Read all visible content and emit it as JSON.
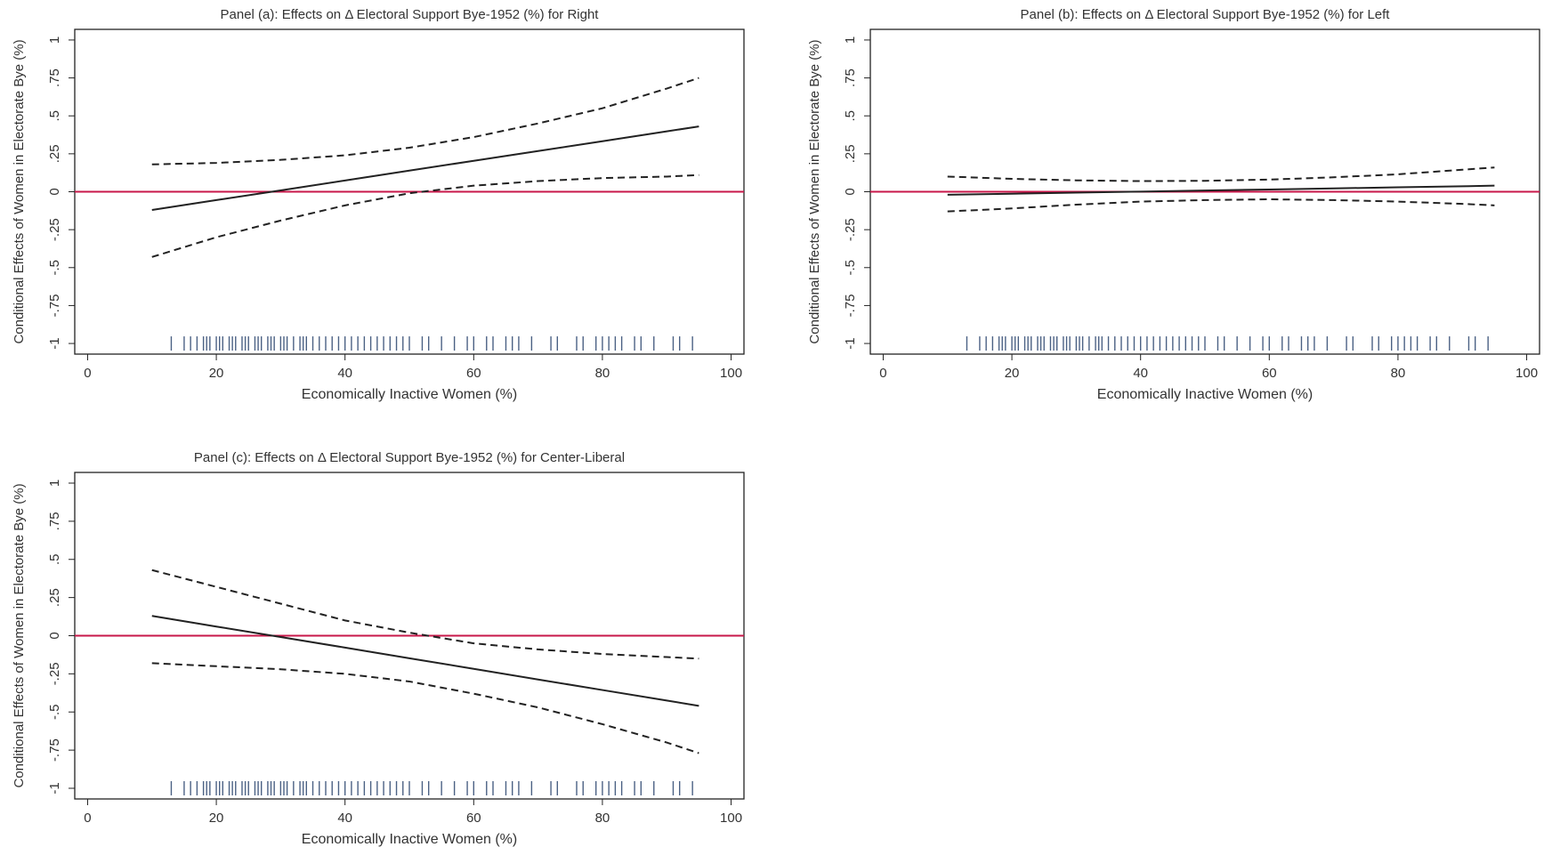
{
  "chart_data": [
    {
      "type": "line",
      "title": "Panel (a): Effects on Δ Electoral Support Bye-1952 (%) for Right",
      "xlabel": "Economically Inactive Women (%)",
      "ylabel": "Conditional Effects of Women in Electorate Bye (%)",
      "x": [
        10,
        20,
        30,
        40,
        50,
        60,
        70,
        80,
        90,
        95
      ],
      "series": [
        {
          "color": "#222222",
          "style": "solid",
          "values": [
            -0.12,
            -0.055,
            0.009,
            0.074,
            0.139,
            0.204,
            0.268,
            0.333,
            0.398,
            0.43
          ]
        },
        {
          "color": "#222222",
          "style": "dashed",
          "values": [
            0.18,
            0.19,
            0.21,
            0.24,
            0.29,
            0.36,
            0.45,
            0.55,
            0.68,
            0.75
          ]
        },
        {
          "color": "#222222",
          "style": "dashed",
          "values": [
            -0.43,
            -0.3,
            -0.19,
            -0.09,
            -0.01,
            0.04,
            0.07,
            0.09,
            0.1,
            0.11
          ]
        }
      ],
      "hline": 0,
      "hline_color": "#c8174a",
      "rug_color": "#1f3a66",
      "rug": [
        13,
        15,
        16,
        17,
        18,
        18.5,
        19,
        20,
        20.5,
        21,
        22,
        22.5,
        23,
        24,
        24.5,
        25,
        26,
        26.5,
        27,
        28,
        28.5,
        29,
        30,
        30.5,
        31,
        32,
        33,
        33.5,
        34,
        35,
        36,
        37,
        38,
        39,
        40,
        41,
        42,
        43,
        44,
        45,
        46,
        47,
        48,
        49,
        50,
        52,
        53,
        55,
        57,
        59,
        60,
        62,
        63,
        65,
        66,
        67,
        69,
        72,
        73,
        76,
        77,
        79,
        80,
        81,
        82,
        83,
        85,
        86,
        88,
        91,
        92,
        94
      ],
      "xlim": [
        -2,
        102
      ],
      "ylim": [
        -1.07,
        1.07
      ],
      "xticks": [
        0,
        20,
        40,
        60,
        80,
        100
      ],
      "yticks": [
        -1,
        {
          "value": -0.75,
          "label": "-.75"
        },
        {
          "value": -0.5,
          "label": "-.5"
        },
        {
          "value": -0.25,
          "label": "-.25"
        },
        0,
        {
          "value": 0.25,
          "label": ".25"
        },
        {
          "value": 0.5,
          "label": ".5"
        },
        {
          "value": 0.75,
          "label": ".75"
        },
        1
      ]
    },
    {
      "type": "line",
      "title": "Panel (b): Effects on Δ Electoral Support Bye-1952 (%) for Left",
      "xlabel": "Economically Inactive Women (%)",
      "ylabel": "Conditional Effects of Women in Electorate Bye (%)",
      "x": [
        10,
        20,
        30,
        40,
        50,
        60,
        70,
        80,
        90,
        95
      ],
      "series": [
        {
          "color": "#222222",
          "style": "solid",
          "values": [
            -0.02,
            -0.013,
            -0.006,
            0.001,
            0.008,
            0.015,
            0.022,
            0.029,
            0.036,
            0.04
          ]
        },
        {
          "color": "#222222",
          "style": "dashed",
          "values": [
            0.1,
            0.085,
            0.075,
            0.07,
            0.072,
            0.08,
            0.095,
            0.115,
            0.145,
            0.16
          ]
        },
        {
          "color": "#222222",
          "style": "dashed",
          "values": [
            -0.13,
            -0.11,
            -0.085,
            -0.065,
            -0.055,
            -0.05,
            -0.055,
            -0.065,
            -0.08,
            -0.09
          ]
        }
      ],
      "hline": 0,
      "hline_color": "#c8174a",
      "rug_color": "#1f3a66",
      "rug": [
        13,
        15,
        16,
        17,
        18,
        18.5,
        19,
        20,
        20.5,
        21,
        22,
        22.5,
        23,
        24,
        24.5,
        25,
        26,
        26.5,
        27,
        28,
        28.5,
        29,
        30,
        30.5,
        31,
        32,
        33,
        33.5,
        34,
        35,
        36,
        37,
        38,
        39,
        40,
        41,
        42,
        43,
        44,
        45,
        46,
        47,
        48,
        49,
        50,
        52,
        53,
        55,
        57,
        59,
        60,
        62,
        63,
        65,
        66,
        67,
        69,
        72,
        73,
        76,
        77,
        79,
        80,
        81,
        82,
        83,
        85,
        86,
        88,
        91,
        92,
        94
      ],
      "xlim": [
        -2,
        102
      ],
      "ylim": [
        -1.07,
        1.07
      ],
      "xticks": [
        0,
        20,
        40,
        60,
        80,
        100
      ],
      "yticks": [
        -1,
        {
          "value": -0.75,
          "label": "-.75"
        },
        {
          "value": -0.5,
          "label": "-.5"
        },
        {
          "value": -0.25,
          "label": "-.25"
        },
        0,
        {
          "value": 0.25,
          "label": ".25"
        },
        {
          "value": 0.5,
          "label": ".5"
        },
        {
          "value": 0.75,
          "label": ".75"
        },
        1
      ]
    },
    {
      "type": "line",
      "title": "Panel (c): Effects on Δ Electoral Support Bye-1952 (%) for Center-Liberal",
      "xlabel": "Economically Inactive Women (%)",
      "ylabel": "Conditional Effects of Women in Electorate Bye (%)",
      "x": [
        10,
        20,
        30,
        40,
        50,
        60,
        70,
        80,
        90,
        95
      ],
      "series": [
        {
          "color": "#222222",
          "style": "solid",
          "values": [
            0.13,
            0.06,
            -0.009,
            -0.078,
            -0.148,
            -0.217,
            -0.287,
            -0.356,
            -0.425,
            -0.46
          ]
        },
        {
          "color": "#222222",
          "style": "dashed",
          "values": [
            0.43,
            0.32,
            0.21,
            0.1,
            0.02,
            -0.05,
            -0.09,
            -0.12,
            -0.14,
            -0.15
          ]
        },
        {
          "color": "#222222",
          "style": "dashed",
          "values": [
            -0.18,
            -0.2,
            -0.22,
            -0.25,
            -0.3,
            -0.38,
            -0.47,
            -0.58,
            -0.7,
            -0.77
          ]
        }
      ],
      "hline": 0,
      "hline_color": "#c8174a",
      "rug_color": "#1f3a66",
      "rug": [
        13,
        15,
        16,
        17,
        18,
        18.5,
        19,
        20,
        20.5,
        21,
        22,
        22.5,
        23,
        24,
        24.5,
        25,
        26,
        26.5,
        27,
        28,
        28.5,
        29,
        30,
        30.5,
        31,
        32,
        33,
        33.5,
        34,
        35,
        36,
        37,
        38,
        39,
        40,
        41,
        42,
        43,
        44,
        45,
        46,
        47,
        48,
        49,
        50,
        52,
        53,
        55,
        57,
        59,
        60,
        62,
        63,
        65,
        66,
        67,
        69,
        72,
        73,
        76,
        77,
        79,
        80,
        81,
        82,
        83,
        85,
        86,
        88,
        91,
        92,
        94
      ],
      "xlim": [
        -2,
        102
      ],
      "ylim": [
        -1.07,
        1.07
      ],
      "xticks": [
        0,
        20,
        40,
        60,
        80,
        100
      ],
      "yticks": [
        -1,
        {
          "value": -0.75,
          "label": "-.75"
        },
        {
          "value": -0.5,
          "label": "-.5"
        },
        {
          "value": -0.25,
          "label": "-.25"
        },
        0,
        {
          "value": 0.25,
          "label": ".25"
        },
        {
          "value": 0.5,
          "label": ".5"
        },
        {
          "value": 0.75,
          "label": ".75"
        },
        1
      ]
    }
  ]
}
